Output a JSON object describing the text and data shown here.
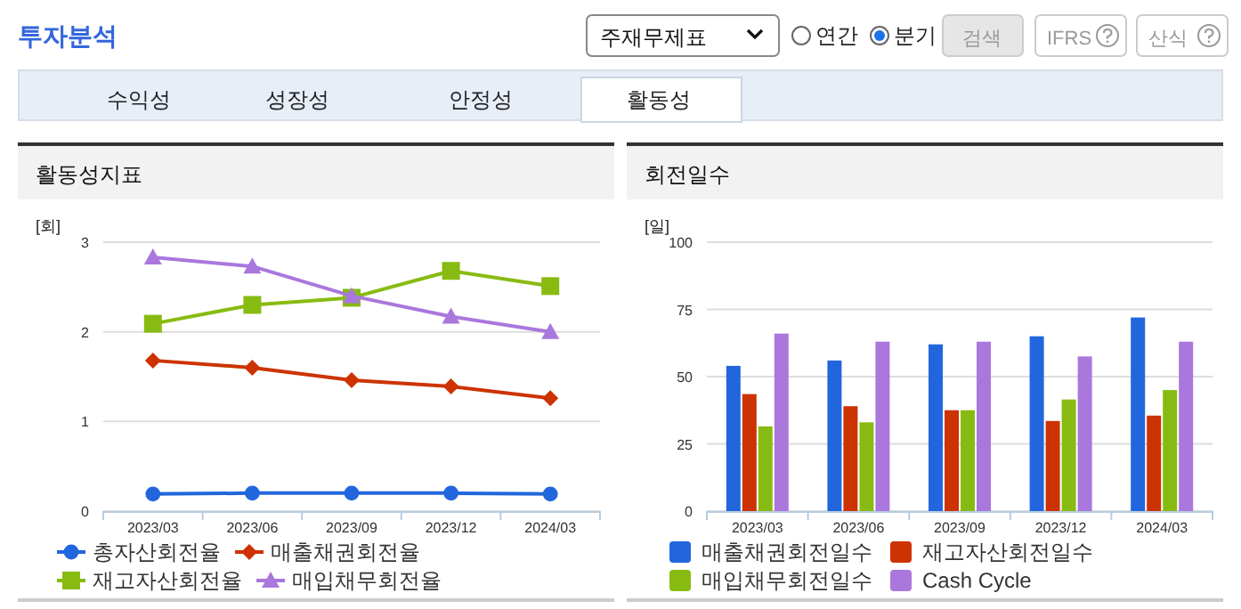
{
  "chart_data": [
    {
      "type": "other",
      "title": "투자분석",
      "annotations": [
        "주재무제표",
        "연간",
        "분기",
        "검색",
        "IFRS",
        "산식",
        "수익성",
        "성장성",
        "안정성",
        "활동성"
      ]
    },
    {
      "type": "line",
      "title": "활동성지표",
      "ylabel": "[회]",
      "categories": [
        "2023/03",
        "2023/06",
        "2023/09",
        "2023/12",
        "2024/03"
      ],
      "ylim": [
        0,
        3
      ],
      "yticks": [
        0,
        1,
        2,
        3
      ],
      "grid": "y",
      "legend": "bottom",
      "series": [
        {
          "name": "총자산회전율",
          "color": "#2266dd",
          "marker": "circle",
          "values": [
            0.19,
            0.2,
            0.2,
            0.2,
            0.19
          ]
        },
        {
          "name": "매출채권회전율",
          "color": "#cc3300",
          "marker": "diamond",
          "values": [
            1.68,
            1.6,
            1.46,
            1.39,
            1.26
          ]
        },
        {
          "name": "재고자산회전율",
          "color": "#88bb11",
          "marker": "square",
          "values": [
            2.09,
            2.3,
            2.38,
            2.68,
            2.51
          ]
        },
        {
          "name": "매입채무회전율",
          "color": "#aa77dd",
          "marker": "triangle",
          "values": [
            2.83,
            2.73,
            2.4,
            2.17,
            2.0
          ]
        }
      ]
    },
    {
      "type": "bar",
      "title": "회전일수",
      "ylabel": "[일]",
      "categories": [
        "2023/03",
        "2023/06",
        "2023/09",
        "2023/12",
        "2024/03"
      ],
      "ylim": [
        0,
        100
      ],
      "yticks": [
        0,
        25,
        50,
        75,
        100
      ],
      "grid": "y",
      "legend": "bottom",
      "series": [
        {
          "name": "매출채권회전일수",
          "color": "#2266dd",
          "values": [
            54,
            56,
            62,
            65,
            72
          ]
        },
        {
          "name": "재고자산회전일수",
          "color": "#cc3300",
          "values": [
            43.5,
            39,
            37.5,
            33.5,
            35.5
          ]
        },
        {
          "name": "매입채무회전일수",
          "color": "#88bb11",
          "values": [
            31.5,
            33,
            37.5,
            41.5,
            45
          ]
        },
        {
          "name": "Cash Cycle",
          "color": "#aa77dd",
          "values": [
            66,
            63,
            63,
            57.5,
            63
          ]
        }
      ]
    }
  ]
}
